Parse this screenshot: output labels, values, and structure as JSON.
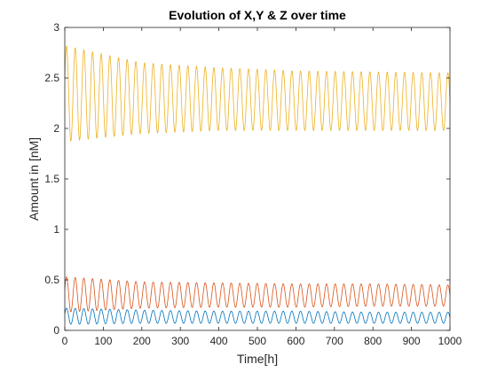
{
  "chart_data": {
    "type": "line",
    "title": "Evolution of X,Y & Z over time",
    "xlabel": "Time[h]",
    "ylabel": "Amount in [nM]",
    "xlim": [
      0,
      1000
    ],
    "ylim": [
      0,
      3
    ],
    "xticks": [
      0,
      100,
      200,
      300,
      400,
      500,
      600,
      700,
      800,
      900,
      1000
    ],
    "yticks": [
      0,
      0.5,
      1,
      1.5,
      2,
      2.5,
      3
    ],
    "grid": false,
    "legend": "none",
    "oscillation_period": 22.5,
    "series": [
      {
        "color": "#0072BD",
        "x": [
          0,
          200,
          400,
          600,
          800,
          1000
        ],
        "upper": [
          0.22,
          0.2,
          0.19,
          0.19,
          0.18,
          0.18
        ],
        "lower": [
          0.06,
          0.07,
          0.07,
          0.07,
          0.07,
          0.07
        ]
      },
      {
        "color": "#D95319",
        "x": [
          0,
          200,
          400,
          600,
          800,
          1000
        ],
        "upper": [
          0.53,
          0.48,
          0.47,
          0.46,
          0.46,
          0.45
        ],
        "lower": [
          0.18,
          0.22,
          0.23,
          0.23,
          0.24,
          0.24
        ]
      },
      {
        "color": "#EDB120",
        "x": [
          0,
          200,
          400,
          600,
          800,
          1000
        ],
        "upper": [
          2.82,
          2.65,
          2.6,
          2.57,
          2.56,
          2.55
        ],
        "lower": [
          1.87,
          1.95,
          1.98,
          1.98,
          1.98,
          1.98
        ]
      }
    ]
  }
}
